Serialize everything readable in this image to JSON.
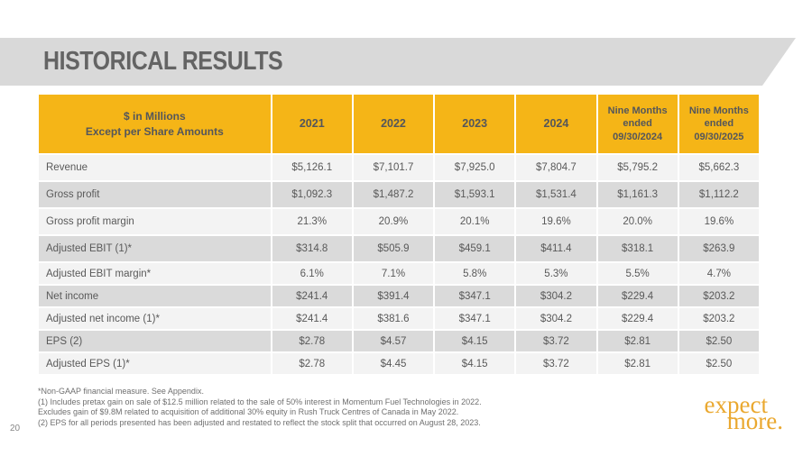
{
  "slide": {
    "title": "HISTORICAL RESULTS",
    "page_number": "20"
  },
  "colors": {
    "header_gold": "#f5b517",
    "banner_gray": "#d9d9d9",
    "row_light": "#f3f3f3",
    "row_dark": "#dadada",
    "logo_gold": "#eaa82f",
    "text_gray": "#595959"
  },
  "table": {
    "corner_header": "$ in Millions\nExcept per Share Amounts",
    "columns": [
      "2021",
      "2022",
      "2023",
      "2024",
      "Nine Months\nended\n09/30/2024",
      "Nine Months\nended\n09/30/2025"
    ],
    "rows": [
      {
        "label": "Revenue",
        "values": [
          "$5,126.1",
          "$7,101.7",
          "$7,925.0",
          "$7,804.7",
          "$5,795.2",
          "$5,662.3"
        ]
      },
      {
        "label": "Gross profit",
        "values": [
          "$1,092.3",
          "$1,487.2",
          "$1,593.1",
          "$1,531.4",
          "$1,161.3",
          "$1,112.2"
        ]
      },
      {
        "label": "Gross profit margin",
        "values": [
          "21.3%",
          "20.9%",
          "20.1%",
          "19.6%",
          "20.0%",
          "19.6%"
        ]
      },
      {
        "label": "Adjusted EBIT (1)*",
        "values": [
          "$314.8",
          "$505.9",
          "$459.1",
          "$411.4",
          "$318.1",
          "$263.9"
        ]
      },
      {
        "label": "Adjusted EBIT margin*",
        "values": [
          "6.1%",
          "7.1%",
          "5.8%",
          "5.3%",
          "5.5%",
          "4.7%"
        ]
      },
      {
        "label": "Net income",
        "values": [
          "$241.4",
          "$391.4",
          "$347.1",
          "$304.2",
          "$229.4",
          "$203.2"
        ]
      },
      {
        "label": "Adjusted net income (1)*",
        "values": [
          "$241.4",
          "$381.6",
          "$347.1",
          "$304.2",
          "$229.4",
          "$203.2"
        ]
      },
      {
        "label": "EPS (2)",
        "values": [
          "$2.78",
          "$4.57",
          "$4.15",
          "$3.72",
          "$2.81",
          "$2.50"
        ]
      },
      {
        "label": "Adjusted EPS (1)*",
        "values": [
          "$2.78",
          "$4.45",
          "$4.15",
          "$3.72",
          "$2.81",
          "$2.50"
        ]
      }
    ]
  },
  "footnotes": [
    "*Non-GAAP financial measure.  See Appendix.",
    "(1)  Includes pretax gain on sale of $12.5 million related to the sale of 50% interest in Momentum Fuel Technologies in 2022.",
    "Excludes gain of $9.8M related to acquisition of additional 30% equity in Rush Truck  Centres of Canada in May 2022.",
    "(2)  EPS for all periods presented has been adjusted and restated to reflect the stock split that occurred on August 28, 2023."
  ],
  "logo": {
    "line1": "expect",
    "line2": "more."
  }
}
